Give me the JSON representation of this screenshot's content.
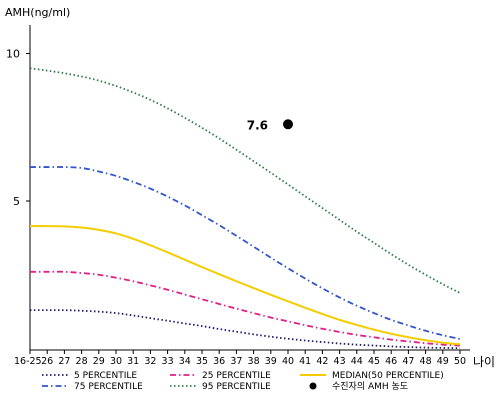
{
  "chart_data": {
    "type": "line",
    "ylabel": "AMH(ng/ml)",
    "xlabel": "나이",
    "categories": [
      "16-25",
      "26",
      "27",
      "28",
      "29",
      "30",
      "31",
      "32",
      "33",
      "34",
      "35",
      "36",
      "37",
      "38",
      "39",
      "40",
      "41",
      "42",
      "43",
      "44",
      "45",
      "46",
      "47",
      "48",
      "49",
      "50"
    ],
    "yticks": [
      5,
      10
    ],
    "ylim": [
      0,
      11
    ],
    "series": [
      {
        "name": "5 PERCENTILE",
        "color": "#1a1a6e",
        "dash": "dot",
        "values": [
          1.3,
          1.3,
          1.3,
          1.28,
          1.25,
          1.2,
          1.12,
          1.03,
          0.94,
          0.85,
          0.76,
          0.66,
          0.57,
          0.48,
          0.4,
          0.33,
          0.27,
          0.22,
          0.17,
          0.13,
          0.1,
          0.07,
          0.05,
          0.03,
          0.02,
          0.01
        ]
      },
      {
        "name": "25 PERCENTILE",
        "color": "#e0208a",
        "dash": "dashdot",
        "values": [
          2.6,
          2.6,
          2.6,
          2.56,
          2.5,
          2.4,
          2.28,
          2.14,
          1.99,
          1.83,
          1.67,
          1.51,
          1.35,
          1.2,
          1.05,
          0.92,
          0.79,
          0.67,
          0.56,
          0.46,
          0.38,
          0.3,
          0.24,
          0.18,
          0.13,
          0.1
        ]
      },
      {
        "name": "MEDIAN(50 PERCENTILE)",
        "color": "#f5cc00",
        "dash": "solid",
        "values": [
          4.15,
          4.15,
          4.14,
          4.1,
          4.02,
          3.9,
          3.72,
          3.5,
          3.26,
          3.01,
          2.76,
          2.52,
          2.28,
          2.05,
          1.82,
          1.6,
          1.38,
          1.17,
          0.97,
          0.8,
          0.64,
          0.5,
          0.38,
          0.28,
          0.2,
          0.14
        ]
      },
      {
        "name": "75 PERCENTILE",
        "color": "#3355cc",
        "dash": "dashdot",
        "values": [
          6.15,
          6.15,
          6.15,
          6.12,
          6.0,
          5.85,
          5.65,
          5.42,
          5.15,
          4.85,
          4.52,
          4.18,
          3.82,
          3.45,
          3.08,
          2.72,
          2.37,
          2.04,
          1.73,
          1.45,
          1.2,
          0.97,
          0.78,
          0.6,
          0.45,
          0.32
        ]
      },
      {
        "name": "95 PERCENTILE",
        "color": "#2a7a45",
        "dash": "dot",
        "values": [
          9.5,
          9.42,
          9.33,
          9.22,
          9.08,
          8.9,
          8.68,
          8.43,
          8.14,
          7.82,
          7.48,
          7.12,
          6.74,
          6.35,
          5.96,
          5.56,
          5.16,
          4.76,
          4.36,
          3.96,
          3.58,
          3.2,
          2.84,
          2.5,
          2.18,
          1.88
        ]
      }
    ],
    "marker": {
      "name": "수진자의 AMH 농도",
      "x": "40",
      "y": 7.6,
      "label": "7.6",
      "color": "#000000"
    }
  }
}
